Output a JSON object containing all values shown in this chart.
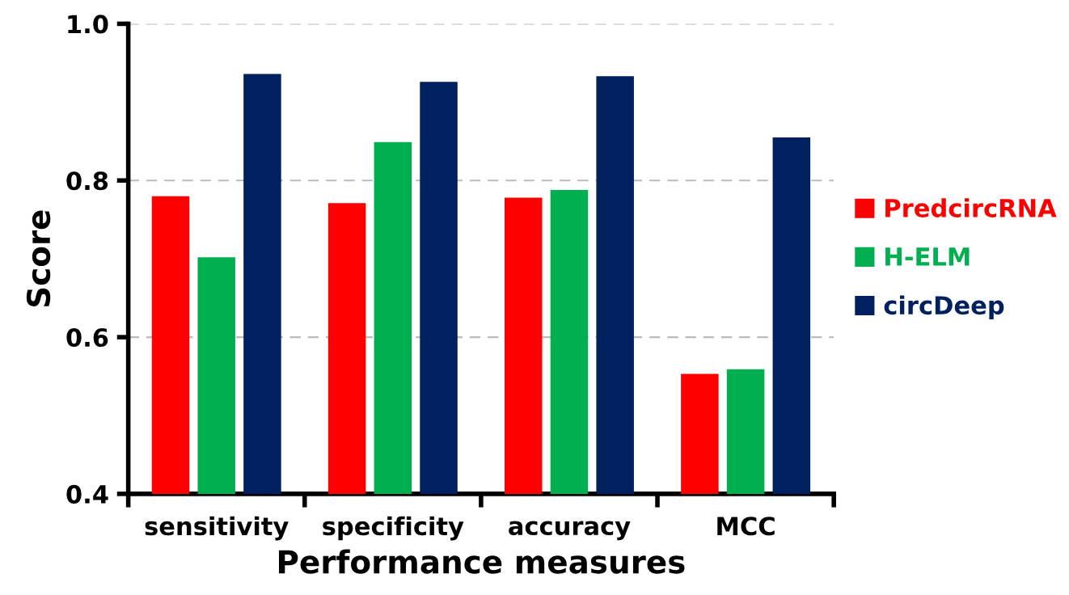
{
  "chart_data": {
    "type": "bar",
    "xlabel": "Performance measures",
    "ylabel": "Score",
    "categories": [
      "sensitivity",
      "specificity",
      "accuracy",
      "MCC"
    ],
    "series": [
      {
        "name": "PredcircRNA",
        "color": "#ff0000",
        "values": [
          0.78,
          0.771,
          0.778,
          0.553
        ]
      },
      {
        "name": "H-ELM",
        "color": "#00b050",
        "values": [
          0.702,
          0.849,
          0.788,
          0.559
        ]
      },
      {
        "name": "circDeep",
        "color": "#002060",
        "values": [
          0.936,
          0.926,
          0.933,
          0.855
        ]
      }
    ],
    "ylim": [
      0.4,
      1.0
    ],
    "yticks": [
      {
        "value": 0.4,
        "label": "0.4"
      },
      {
        "value": 0.6,
        "label": "0.6"
      },
      {
        "value": 0.8,
        "label": "0.8"
      },
      {
        "value": 1.0,
        "label": "1.0"
      }
    ],
    "grid": "y",
    "legend": "right"
  }
}
